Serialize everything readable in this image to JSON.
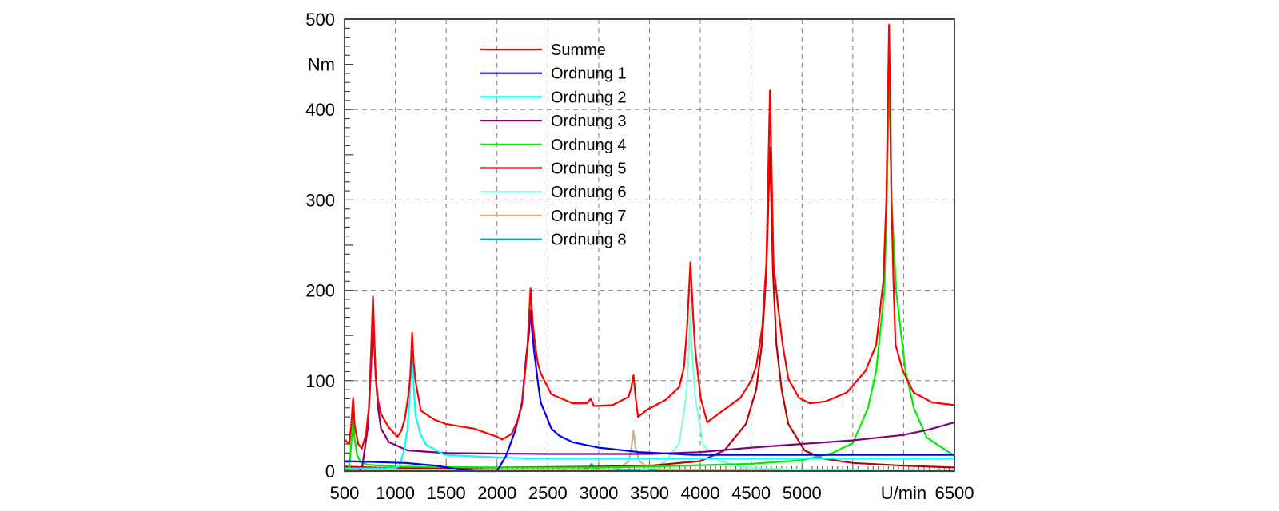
{
  "chart_data": {
    "type": "line",
    "title": "",
    "xlabel": "U/min",
    "ylabel": "Nm",
    "xlim": [
      500,
      6500
    ],
    "ylim": [
      0,
      500
    ],
    "grid": true,
    "legend_position": "top-center",
    "x_ticks": [
      {
        "value": 500,
        "label": "500"
      },
      {
        "value": 1000,
        "label": "1000"
      },
      {
        "value": 1500,
        "label": "1500"
      },
      {
        "value": 2000,
        "label": "2000"
      },
      {
        "value": 2500,
        "label": "2500"
      },
      {
        "value": 3000,
        "label": "3000"
      },
      {
        "value": 3500,
        "label": "3500"
      },
      {
        "value": 4000,
        "label": "4000"
      },
      {
        "value": 4500,
        "label": "4500"
      },
      {
        "value": 5000,
        "label": "5000"
      },
      {
        "value": 6000,
        "label": "U/min"
      },
      {
        "value": 6500,
        "label": "6500"
      }
    ],
    "y_ticks": [
      {
        "value": 0,
        "label": "0"
      },
      {
        "value": 100,
        "label": "100"
      },
      {
        "value": 200,
        "label": "200"
      },
      {
        "value": 300,
        "label": "300"
      },
      {
        "value": 400,
        "label": "400"
      },
      {
        "value": 450,
        "label": "Nm"
      },
      {
        "value": 500,
        "label": "500"
      }
    ],
    "series": [
      {
        "name": "Summe",
        "color": "#ff0000",
        "points": [
          [
            500,
            35
          ],
          [
            545,
            30
          ],
          [
            565,
            50
          ],
          [
            584,
            81
          ],
          [
            600,
            50
          ],
          [
            635,
            30
          ],
          [
            670,
            25
          ],
          [
            710,
            40
          ],
          [
            740,
            70
          ],
          [
            760,
            130
          ],
          [
            780,
            193
          ],
          [
            795,
            140
          ],
          [
            806,
            105
          ],
          [
            830,
            78
          ],
          [
            859,
            63
          ],
          [
            937,
            48
          ],
          [
            1021,
            38
          ],
          [
            1060,
            45
          ],
          [
            1094,
            58
          ],
          [
            1130,
            85
          ],
          [
            1147,
            105
          ],
          [
            1165,
            153
          ],
          [
            1180,
            120
          ],
          [
            1199,
            99
          ],
          [
            1251,
            67
          ],
          [
            1382,
            57
          ],
          [
            1500,
            52
          ],
          [
            1775,
            47
          ],
          [
            2000,
            38
          ],
          [
            2050,
            35
          ],
          [
            2141,
            41
          ],
          [
            2200,
            55
          ],
          [
            2246,
            73
          ],
          [
            2298,
            135
          ],
          [
            2330,
            202
          ],
          [
            2351,
            164
          ],
          [
            2372,
            142
          ],
          [
            2400,
            120
          ],
          [
            2430,
            108
          ],
          [
            2534,
            85
          ],
          [
            2743,
            75
          ],
          [
            2887,
            75
          ],
          [
            2921,
            80
          ],
          [
            2953,
            72
          ],
          [
            3136,
            73
          ],
          [
            3293,
            82
          ],
          [
            3320,
            92
          ],
          [
            3343,
            106
          ],
          [
            3365,
            80
          ],
          [
            3387,
            60
          ],
          [
            3479,
            68
          ],
          [
            3662,
            79
          ],
          [
            3793,
            93
          ],
          [
            3840,
            115
          ],
          [
            3870,
            160
          ],
          [
            3903,
            231
          ],
          [
            3930,
            170
          ],
          [
            3950,
            134
          ],
          [
            4003,
            81
          ],
          [
            4068,
            54
          ],
          [
            4186,
            64
          ],
          [
            4395,
            81
          ],
          [
            4500,
            100
          ],
          [
            4552,
            117
          ],
          [
            4610,
            160
          ],
          [
            4650,
            230
          ],
          [
            4685,
            421
          ],
          [
            4720,
            230
          ],
          [
            4762,
            184
          ],
          [
            4810,
            140
          ],
          [
            4866,
            102
          ],
          [
            4971,
            81
          ],
          [
            5076,
            75
          ],
          [
            5233,
            77
          ],
          [
            5442,
            87
          ],
          [
            5626,
            111
          ],
          [
            5730,
            140
          ],
          [
            5800,
            210
          ],
          [
            5830,
            300
          ],
          [
            5857,
            494
          ],
          [
            5880,
            300
          ],
          [
            5900,
            210
          ],
          [
            5920,
            140
          ],
          [
            5992,
            111
          ],
          [
            6097,
            87
          ],
          [
            6280,
            76
          ],
          [
            6500,
            73
          ]
        ]
      },
      {
        "name": "Ordnung 1",
        "color": "#0000ff",
        "points": [
          [
            500,
            11
          ],
          [
            800,
            10
          ],
          [
            1100,
            9
          ],
          [
            1400,
            6
          ],
          [
            1670,
            1
          ],
          [
            1800,
            0
          ],
          [
            2000,
            0
          ],
          [
            2089,
            17
          ],
          [
            2180,
            45
          ],
          [
            2246,
            76
          ],
          [
            2290,
            130
          ],
          [
            2311,
            149
          ],
          [
            2330,
            178
          ],
          [
            2345,
            155
          ],
          [
            2364,
            134
          ],
          [
            2400,
            100
          ],
          [
            2430,
            76
          ],
          [
            2534,
            47
          ],
          [
            2615,
            39
          ],
          [
            2743,
            32
          ],
          [
            3000,
            26
          ],
          [
            3400,
            21
          ],
          [
            3924,
            18
          ],
          [
            6500,
            18
          ]
        ]
      },
      {
        "name": "Ordnung 2",
        "color": "#00ffff",
        "points": [
          [
            500,
            3
          ],
          [
            1000,
            3
          ],
          [
            1042,
            6
          ],
          [
            1090,
            25
          ],
          [
            1120,
            47
          ],
          [
            1145,
            90
          ],
          [
            1165,
            137
          ],
          [
            1180,
            95
          ],
          [
            1199,
            61
          ],
          [
            1250,
            40
          ],
          [
            1304,
            29
          ],
          [
            1487,
            18
          ],
          [
            1827,
            16
          ],
          [
            2325,
            14
          ],
          [
            6500,
            14
          ]
        ]
      },
      {
        "name": "Ordnung 3",
        "color": "#800080",
        "points": [
          [
            500,
            0
          ],
          [
            650,
            0
          ],
          [
            675,
            6
          ],
          [
            728,
            47
          ],
          [
            750,
            90
          ],
          [
            767,
            134
          ],
          [
            780,
            175
          ],
          [
            792,
            140
          ],
          [
            806,
            105
          ],
          [
            830,
            70
          ],
          [
            859,
            47
          ],
          [
            937,
            32
          ],
          [
            1120,
            23
          ],
          [
            1500,
            20
          ],
          [
            2500,
            19
          ],
          [
            3500,
            19
          ],
          [
            4000,
            21
          ],
          [
            4500,
            26
          ],
          [
            5000,
            30
          ],
          [
            5500,
            34
          ],
          [
            6000,
            40
          ],
          [
            6250,
            46
          ],
          [
            6500,
            54
          ]
        ]
      },
      {
        "name": "Ordnung 4",
        "color": "#00ee00",
        "points": [
          [
            500,
            0
          ],
          [
            545,
            2
          ],
          [
            565,
            30
          ],
          [
            584,
            54
          ],
          [
            600,
            35
          ],
          [
            623,
            18
          ],
          [
            660,
            10
          ],
          [
            728,
            7
          ],
          [
            1000,
            5
          ],
          [
            2000,
            4
          ],
          [
            3000,
            4
          ],
          [
            3500,
            5
          ],
          [
            4500,
            8
          ],
          [
            5000,
            12
          ],
          [
            5300,
            20
          ],
          [
            5500,
            31
          ],
          [
            5650,
            70
          ],
          [
            5730,
            111
          ],
          [
            5810,
            199
          ],
          [
            5835,
            300
          ],
          [
            5857,
            451
          ],
          [
            5880,
            300
          ],
          [
            5927,
            199
          ],
          [
            6018,
            111
          ],
          [
            6100,
            70
          ],
          [
            6228,
            37
          ],
          [
            6500,
            17
          ]
        ]
      },
      {
        "name": "Ordnung 5",
        "color": "#c00000",
        "points": [
          [
            500,
            5
          ],
          [
            1000,
            3
          ],
          [
            2000,
            4
          ],
          [
            3000,
            5
          ],
          [
            3500,
            6
          ],
          [
            4000,
            11
          ],
          [
            4238,
            23
          ],
          [
            4448,
            52
          ],
          [
            4550,
            90
          ],
          [
            4605,
            140
          ],
          [
            4650,
            220
          ],
          [
            4685,
            358
          ],
          [
            4715,
            220
          ],
          [
            4749,
            140
          ],
          [
            4800,
            90
          ],
          [
            4866,
            52
          ],
          [
            5024,
            23
          ],
          [
            5200,
            14
          ],
          [
            5500,
            9
          ],
          [
            6000,
            6
          ],
          [
            6500,
            4
          ]
        ]
      },
      {
        "name": "Ordnung 6",
        "color": "#7fffd4",
        "points": [
          [
            500,
            0
          ],
          [
            3400,
            0
          ],
          [
            3550,
            4
          ],
          [
            3662,
            11
          ],
          [
            3793,
            31
          ],
          [
            3859,
            81
          ],
          [
            3885,
            130
          ],
          [
            3903,
            182
          ],
          [
            3920,
            130
          ],
          [
            3950,
            81
          ],
          [
            4029,
            29
          ],
          [
            4186,
            11
          ],
          [
            4448,
            4
          ],
          [
            5000,
            1
          ],
          [
            6500,
            0
          ]
        ]
      },
      {
        "name": "Ordnung 7",
        "color": "#d2b48c",
        "points": [
          [
            500,
            1
          ],
          [
            3100,
            1
          ],
          [
            3200,
            3
          ],
          [
            3296,
            11
          ],
          [
            3325,
            28
          ],
          [
            3343,
            45
          ],
          [
            3360,
            28
          ],
          [
            3400,
            11
          ],
          [
            3500,
            3
          ],
          [
            3700,
            1
          ],
          [
            6500,
            0
          ]
        ]
      },
      {
        "name": "Ordnung 8",
        "color": "#00b4b4",
        "points": [
          [
            500,
            2
          ],
          [
            1000,
            1
          ],
          [
            2850,
            1
          ],
          [
            2910,
            5
          ],
          [
            2930,
            8
          ],
          [
            2950,
            5
          ],
          [
            3010,
            1
          ],
          [
            6500,
            0
          ]
        ]
      }
    ]
  }
}
